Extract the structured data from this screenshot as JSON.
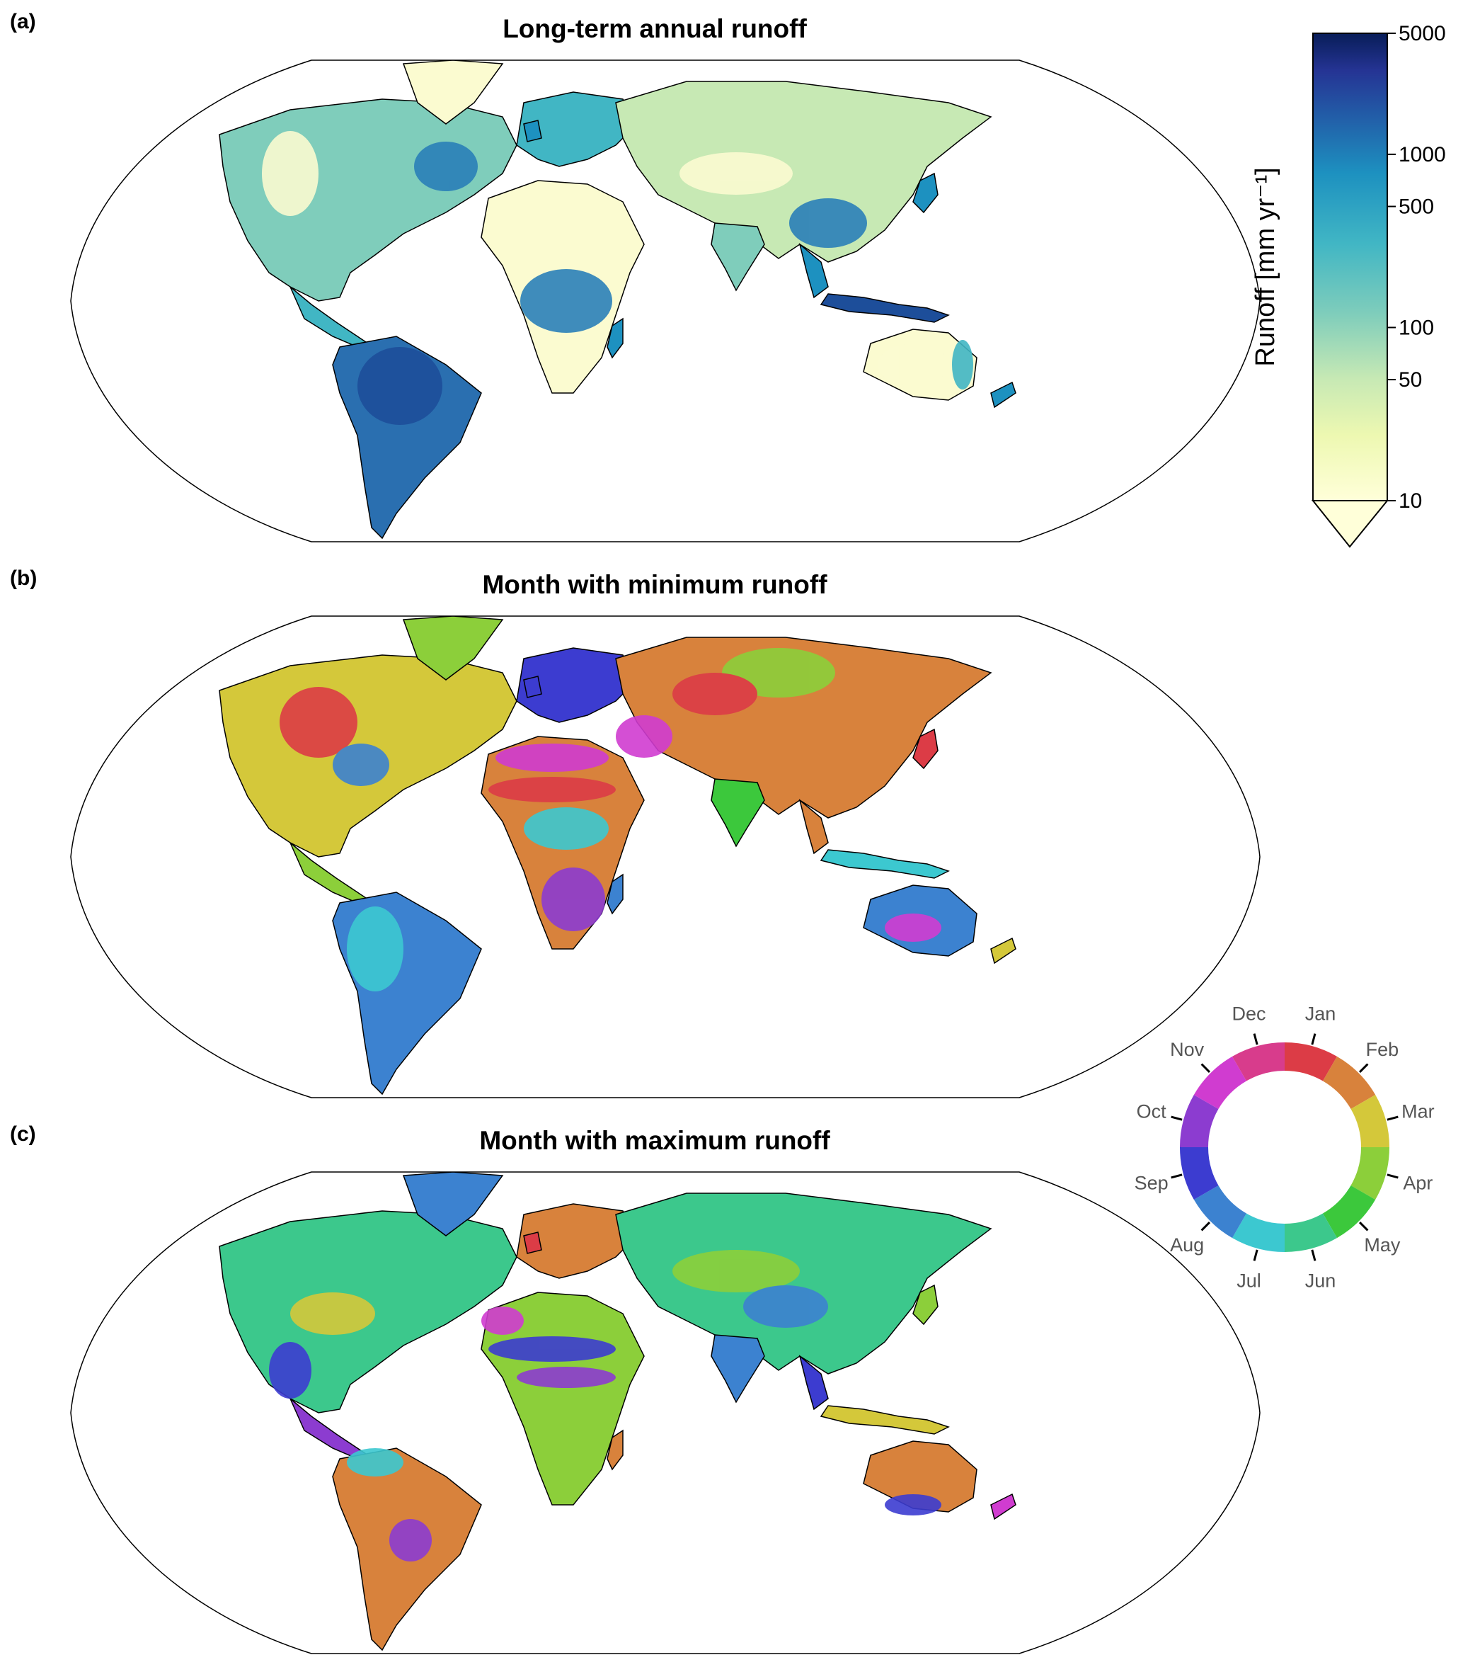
{
  "panels": [
    {
      "letter": "(a)",
      "title": "Long-term annual runoff"
    },
    {
      "letter": "(b)",
      "title": "Month with minimum runoff"
    },
    {
      "letter": "(c)",
      "title": "Month with maximum runoff"
    }
  ],
  "colorbar": {
    "label": "Runoff [mm yr⁻¹]",
    "scale": "log",
    "range": [
      10,
      5000
    ],
    "ticks": [
      {
        "value": 5000,
        "label": "5000"
      },
      {
        "value": 1000,
        "label": "1000"
      },
      {
        "value": 500,
        "label": "500"
      },
      {
        "value": 100,
        "label": "100"
      },
      {
        "value": 50,
        "label": "50"
      },
      {
        "value": 10,
        "label": "10"
      }
    ],
    "colors": [
      "#ffffd9",
      "#c7e9b4",
      "#7fcdbb",
      "#41b6c4",
      "#1d91c0",
      "#225ea8",
      "#0c2c84",
      "#081d58"
    ]
  },
  "month_wheel": {
    "months": [
      {
        "label": "Jan",
        "color": "#dc3c46"
      },
      {
        "label": "Feb",
        "color": "#d8823c"
      },
      {
        "label": "Mar",
        "color": "#d4c83a"
      },
      {
        "label": "Apr",
        "color": "#8ccf3a"
      },
      {
        "label": "May",
        "color": "#3cc83c"
      },
      {
        "label": "Jun",
        "color": "#3cc88c"
      },
      {
        "label": "Jul",
        "color": "#3cc8d0"
      },
      {
        "label": "Aug",
        "color": "#3c82d0"
      },
      {
        "label": "Sep",
        "color": "#3c3cd0"
      },
      {
        "label": "Oct",
        "color": "#8c3cd0"
      },
      {
        "label": "Nov",
        "color": "#d03cd0"
      },
      {
        "label": "Dec",
        "color": "#d83c8c"
      }
    ]
  },
  "map_colors": {
    "ocean": "#ffffff",
    "annual_dry": "#fbfbd0",
    "annual_mid": "#41b6c4",
    "annual_wet": "#1d4e9a",
    "outline": "#000000"
  }
}
